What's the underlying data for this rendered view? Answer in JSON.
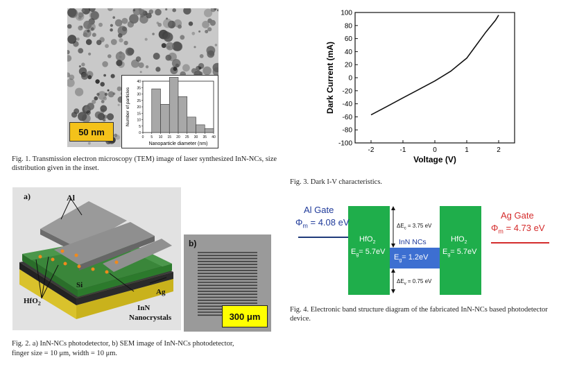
{
  "fig1": {
    "scale_bar": "50 nm",
    "caption": "Fig. 1.   Transmission electron microscopy (TEM) image of laser synthesized InN-NCs, size distribution given in the inset.",
    "inset": {
      "ylabel": "Number of particles",
      "xlabel": "Nanoparticle diameter (nm)",
      "yticks": [
        "0",
        "5",
        "10",
        "15",
        "20",
        "25",
        "30",
        "35",
        "40"
      ],
      "xticks": [
        "0",
        "5",
        "10",
        "15",
        "20",
        "25",
        "30",
        "35",
        "40"
      ],
      "bins": [
        7.5,
        12.5,
        17.5,
        22.5,
        27.5,
        32.5,
        37.5
      ],
      "counts": [
        34,
        22,
        43,
        28,
        12,
        6,
        3
      ]
    }
  },
  "fig2": {
    "label_a": "a)",
    "label_b": "b)",
    "label_al": "Al",
    "label_si": "Si",
    "label_ag": "Ag",
    "label_hfo2": "HfO",
    "label_hfo2_sub": "2",
    "label_inn": "InN",
    "label_nano": "Nanocrystals",
    "sem_scale": "300 μm",
    "caption_1": "Fig. 2.   a) InN-NCs photodetector, b) SEM image of InN-NCs photodetector,",
    "caption_2": "finger size = 10 μm, width = 10 μm."
  },
  "fig3": {
    "caption": "Fig. 3.   Dark I-V characteristics.",
    "chart_data": {
      "type": "line",
      "xlabel": "Voltage (V)",
      "ylabel": "Dark Current (mA)",
      "xlim": [
        -2.5,
        2.5
      ],
      "ylim": [
        -100,
        100
      ],
      "xticks": [
        -2,
        -1,
        0,
        1,
        2
      ],
      "yticks": [
        -100,
        -80,
        -60,
        -40,
        -20,
        0,
        20,
        40,
        60,
        80,
        100
      ],
      "series": [
        {
          "x": [
            -2.0,
            -1.5,
            -1.0,
            -0.5,
            0.0,
            0.5,
            0.8,
            1.0,
            1.3,
            1.6,
            1.9,
            2.0
          ],
          "y": [
            -57,
            -44,
            -31,
            -18,
            -5,
            10,
            22,
            30,
            50,
            70,
            88,
            96
          ]
        }
      ]
    }
  },
  "fig4": {
    "al_gate": "Al Gate",
    "al_phi": "Φ",
    "al_phi_sub": "m",
    "al_phi_val": " = 4.08 eV",
    "ag_gate": "Ag Gate",
    "ag_phi": "Φ",
    "ag_phi_sub": "m",
    "ag_phi_val": " = 4.73 eV",
    "hfo2": "HfO",
    "hfo2_sub": "2",
    "eg_hfo2": "= 5.7eV",
    "inn_title": "InN NCs",
    "eg_inn": "= 1.2eV",
    "e_letter": "E",
    "g_sub": "g",
    "dec": "ΔE",
    "dec_sub": "c",
    "dec_val": " = 3.75 eV",
    "dev": "ΔE",
    "dev_sub": "v",
    "dev_val": " = 0.75 eV",
    "caption": "Fig. 4.   Electronic band structure diagram of the fabricated InN-NCs based photodetector device.",
    "colors": {
      "hfo2": "#1fae4b",
      "inn": "#3d6fd1",
      "al_line": "#1f3a7a",
      "ag_line": "#d42b2b",
      "al_text": "#1f3a9a",
      "ag_text": "#d42b2b"
    }
  }
}
